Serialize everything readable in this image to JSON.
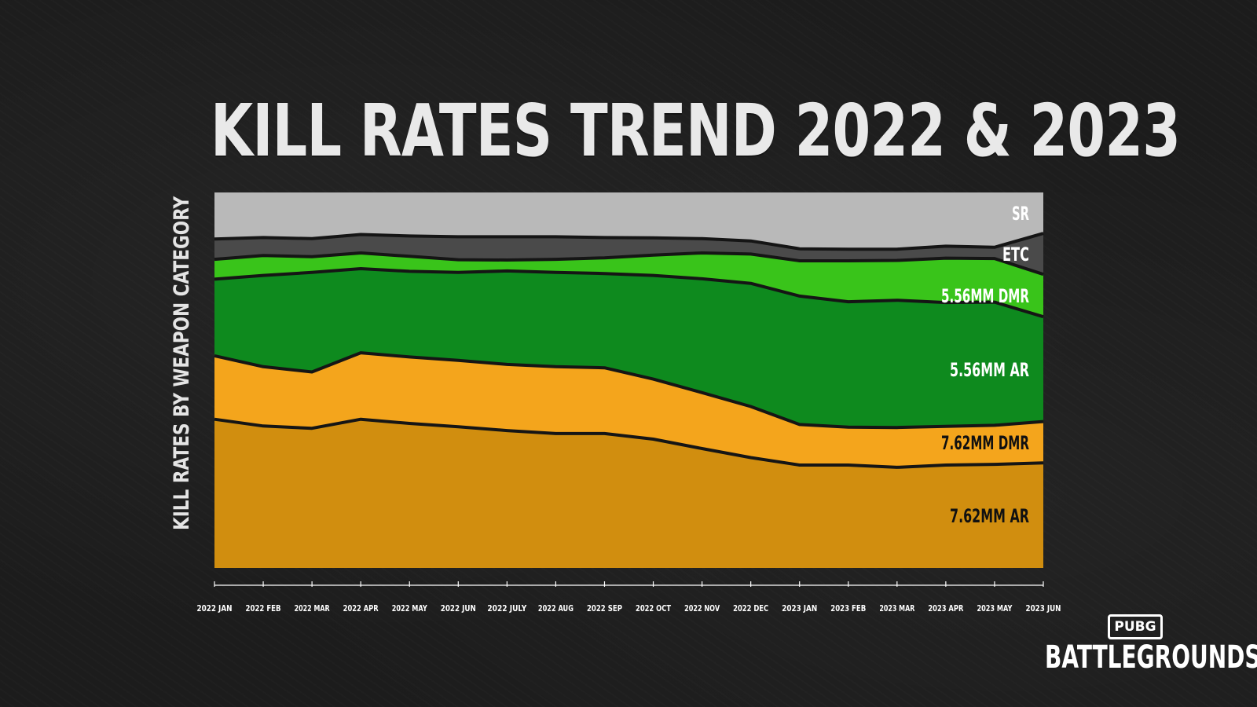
{
  "chart_data": {
    "type": "area",
    "stacked": true,
    "normalized": true,
    "title": "KILL RATES TREND 2022 & 2023",
    "ylabel": "KILL RATES BY WEAPON CATEGORY",
    "xlabel": "",
    "ylim": [
      0,
      100
    ],
    "grid": false,
    "legend": "inline-right",
    "x": [
      "2022 JAN",
      "2022 FEB",
      "2022 MAR",
      "2022 APR",
      "2022 MAY",
      "2022 JUN",
      "2022 JULY",
      "2022 AUG",
      "2022 SEP",
      "2022 OCT",
      "2022 NOV",
      "2022 DEC",
      "2023 JAN",
      "2023 FEB",
      "2023 MAR",
      "2023 APR",
      "2023 MAY",
      "2023 JUN"
    ],
    "series": [
      {
        "name": "7.62MM AR",
        "color": "#d18e0f",
        "label_color": "#111111",
        "values": [
          39.6,
          37.8,
          37.2,
          39.6,
          38.5,
          37.6,
          36.6,
          35.8,
          35.8,
          34.3,
          31.8,
          29.4,
          27.4,
          27.4,
          26.8,
          27.4,
          27.6,
          28.0
        ]
      },
      {
        "name": "7.62MM DMR",
        "color": "#f4a51c",
        "label_color": "#111111",
        "values": [
          16.9,
          15.8,
          15.0,
          17.7,
          17.7,
          17.7,
          17.6,
          17.8,
          17.5,
          16.0,
          14.9,
          13.6,
          10.8,
          10.1,
          10.6,
          10.3,
          10.4,
          11.0
        ]
      },
      {
        "name": "5.56MM AR",
        "color": "#0e8a1e",
        "label_color": "#ffffff",
        "values": [
          20.4,
          24.3,
          26.5,
          22.4,
          22.8,
          23.4,
          24.9,
          25.1,
          25.1,
          27.6,
          30.3,
          32.8,
          34.2,
          33.4,
          33.9,
          33.0,
          32.8,
          27.9
        ]
      },
      {
        "name": "5.56MM DMR",
        "color": "#39c41a",
        "label_color": "#ffffff",
        "values": [
          5.3,
          5.3,
          4.2,
          4.2,
          4.0,
          3.4,
          2.9,
          3.5,
          4.2,
          5.4,
          6.9,
          7.8,
          9.4,
          10.9,
          10.6,
          11.8,
          11.6,
          11.3
        ]
      },
      {
        "name": "ETC",
        "color": "#4a4a4a",
        "label_color": "#ffffff",
        "values": [
          5.4,
          4.8,
          4.8,
          4.9,
          5.4,
          6.1,
          6.2,
          6.0,
          5.4,
          4.6,
          3.8,
          3.5,
          3.2,
          3.1,
          3.0,
          3.2,
          3.0,
          10.9
        ]
      },
      {
        "name": "SR",
        "color": "#b9b9b9",
        "label_color": "#ffffff",
        "values": [
          12.4,
          12.0,
          12.3,
          11.2,
          11.6,
          11.8,
          11.8,
          11.8,
          12.0,
          12.1,
          12.3,
          12.9,
          15.0,
          15.1,
          15.1,
          14.3,
          14.6,
          10.9
        ]
      }
    ]
  },
  "brand": {
    "top": "PUBG",
    "bottom": "BATTLEGROUNDS"
  }
}
